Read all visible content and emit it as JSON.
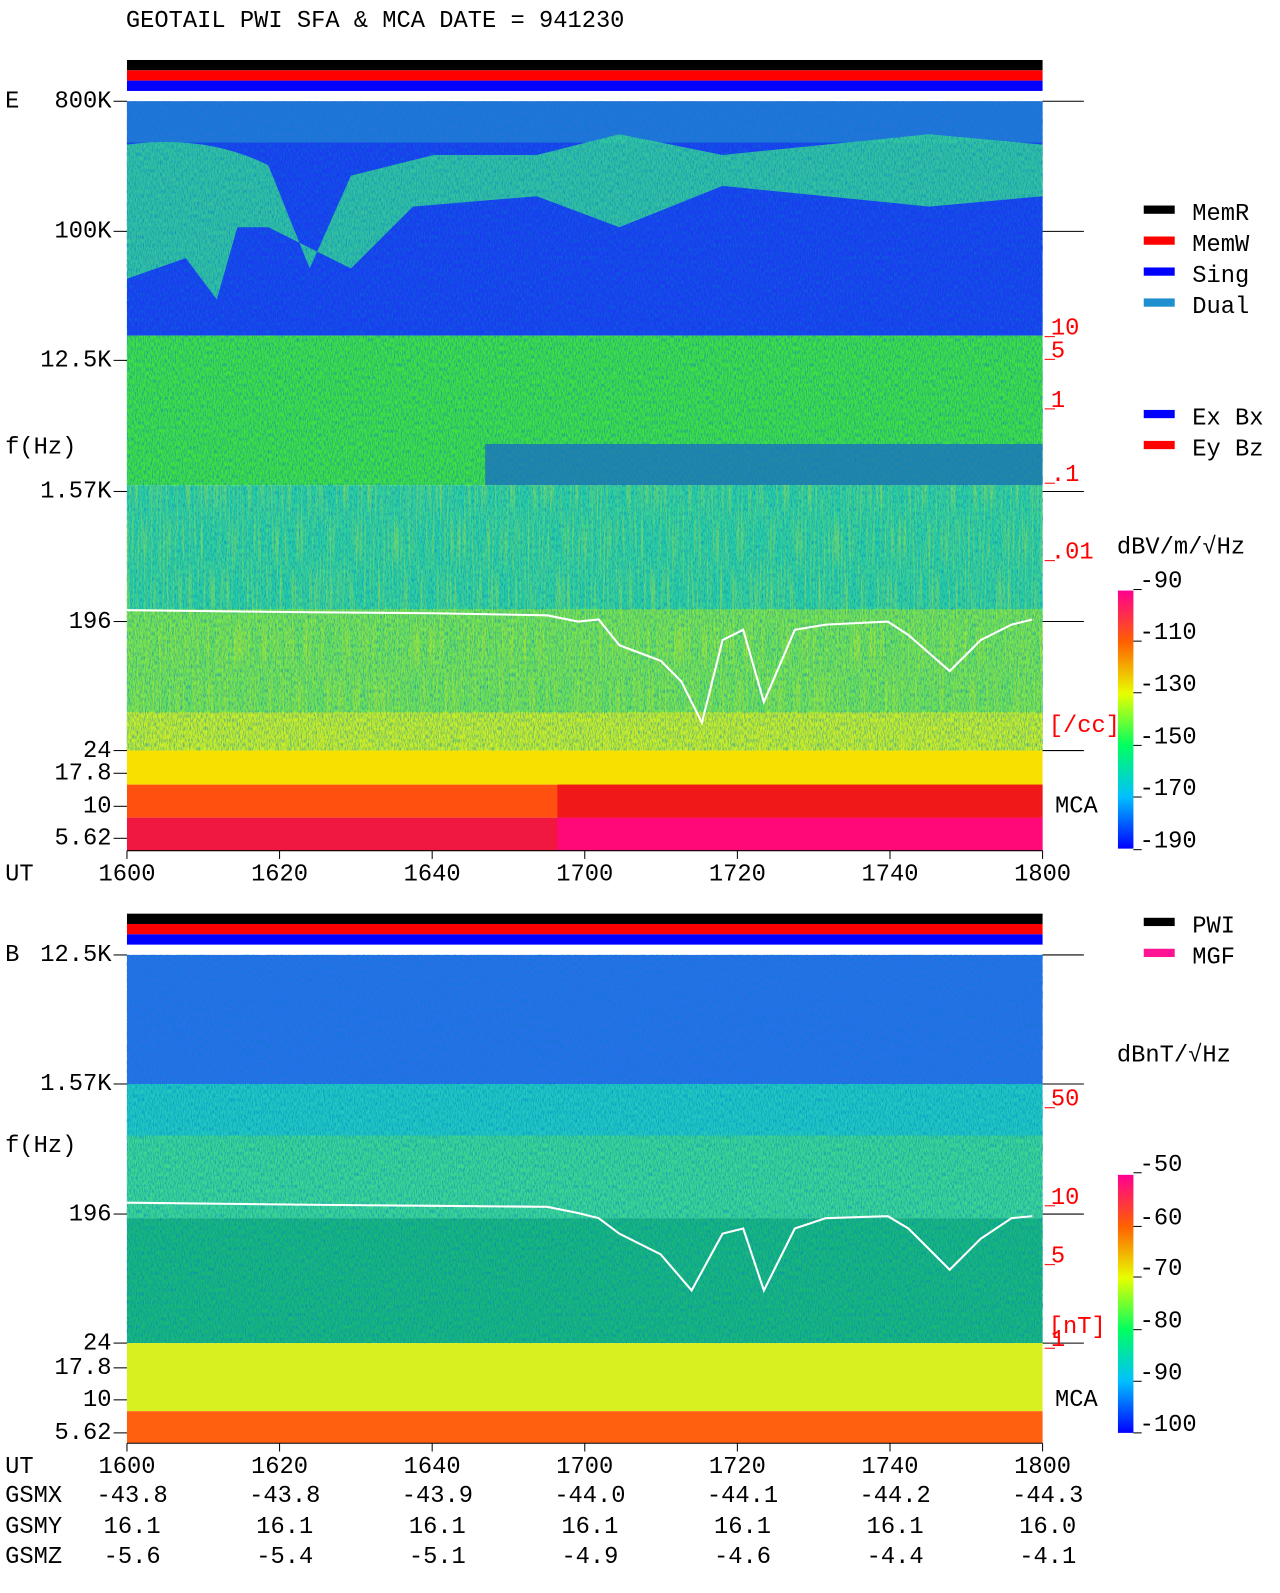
{
  "header": {
    "title": "GEOTAIL   PWI SFA & MCA   DATE = 941230"
  },
  "panels": [
    {
      "component": "E",
      "y_axis_label": "f(Hz)",
      "freq_labels": [
        "800K",
        "100K",
        "12.5K",
        "1.57K",
        "196",
        "24",
        "17.8",
        "10",
        "5.62"
      ],
      "density_labels": [
        "10",
        "5",
        "1",
        ".1",
        ".01"
      ],
      "density_unit": "[/cc]",
      "mca_label": "MCA",
      "colorbar": {
        "unit": "dBV/m/√Hz",
        "ticks": [
          "-90",
          "-110",
          "-130",
          "-150",
          "-170",
          "-190"
        ]
      },
      "legend": [
        {
          "name": "MemR",
          "color": "#000000"
        },
        {
          "name": "MemW",
          "color": "#ff0000"
        },
        {
          "name": "Sing",
          "color": "#0000ff"
        },
        {
          "name": "Dual",
          "color": "#1e90d0"
        }
      ],
      "antenna_legend": [
        {
          "name": "Ex Bx",
          "color": "#0000ff"
        },
        {
          "name": "Ey Bz",
          "color": "#ff0000"
        }
      ]
    },
    {
      "component": "B",
      "y_axis_label": "f(Hz)",
      "freq_labels": [
        "12.5K",
        "1.57K",
        "196",
        "24",
        "17.8",
        "10",
        "5.62"
      ],
      "density_labels": [
        "50",
        "10",
        "5",
        "1"
      ],
      "density_unit": "[nT]",
      "mca_label": "MCA",
      "colorbar": {
        "unit": "dBnT/√Hz",
        "ticks": [
          "-50",
          "-60",
          "-70",
          "-80",
          "-90",
          "-100"
        ]
      },
      "legend": [
        {
          "name": "PWI",
          "color": "#000000"
        },
        {
          "name": "MGF",
          "color": "#ff1493"
        }
      ]
    }
  ],
  "ut": {
    "label": "UT",
    "ticks": [
      "1600",
      "1620",
      "1640",
      "1700",
      "1720",
      "1740",
      "1800"
    ]
  },
  "orbit": [
    {
      "label": "GSMX",
      "values": [
        "-43.8",
        "-43.8",
        "-43.9",
        "-44.0",
        "-44.1",
        "-44.2",
        "-44.3"
      ]
    },
    {
      "label": "GSMY",
      "values": [
        "16.1",
        "16.1",
        "16.1",
        "16.1",
        "16.1",
        "16.1",
        "16.0"
      ]
    },
    {
      "label": "GSMZ",
      "values": [
        "-5.6",
        "-5.4",
        "-5.1",
        "-4.9",
        "-4.6",
        "-4.4",
        "-4.1"
      ]
    }
  ]
}
